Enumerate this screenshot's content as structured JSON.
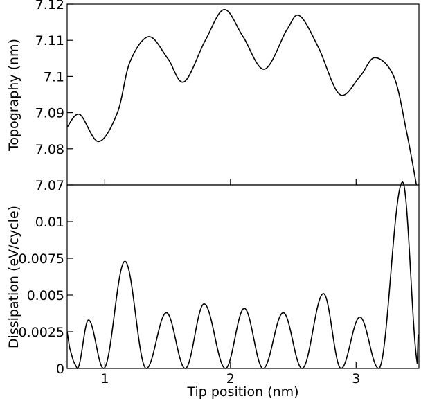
{
  "chart_data": [
    {
      "type": "line",
      "title": "",
      "xlabel": "",
      "ylabel": "Topography (nm)",
      "xlim": [
        0.7,
        3.5
      ],
      "ylim": [
        7.07,
        7.12
      ],
      "yticks": [
        7.07,
        7.08,
        7.09,
        7.1,
        7.11,
        7.12
      ],
      "ytick_labels": [
        "7.07",
        "7.08",
        "7.09",
        "7.1",
        "7.11",
        "7.12"
      ],
      "xticks": [
        1,
        2,
        3
      ],
      "grid": false,
      "legend": "none",
      "series": [
        {
          "x": [
            0.7,
            0.8,
            0.95,
            1.1,
            1.2,
            1.35,
            1.5,
            1.63,
            1.8,
            1.95,
            2.1,
            2.27,
            2.45,
            2.55,
            2.7,
            2.87,
            3.03,
            3.15,
            3.3,
            3.4,
            3.48
          ],
          "values": [
            7.086,
            7.0895,
            7.082,
            7.09,
            7.104,
            7.111,
            7.105,
            7.0985,
            7.11,
            7.1185,
            7.111,
            7.102,
            7.113,
            7.1168,
            7.108,
            7.095,
            7.1,
            7.1052,
            7.1,
            7.085,
            7.07
          ]
        }
      ]
    },
    {
      "type": "line",
      "title": "",
      "xlabel": "Tip position (nm)",
      "ylabel": "Dissipation (eV/cycle)",
      "xlim": [
        0.7,
        3.5
      ],
      "ylim": [
        0,
        0.0125
      ],
      "yticks": [
        0,
        0.0025,
        0.005,
        0.0075,
        0.01
      ],
      "ytick_labels": [
        "0",
        "0.0025",
        "0.005",
        "0.0075",
        "0.01"
      ],
      "xticks": [
        1,
        2,
        3
      ],
      "xtick_labels": [
        "1",
        "2",
        "3"
      ],
      "grid": false,
      "legend": "none",
      "peaks": {
        "x": [
          0.87,
          1.16,
          1.49,
          1.79,
          2.11,
          2.42,
          2.74,
          3.03,
          3.37
        ],
        "values": [
          0.0033,
          0.0073,
          0.0038,
          0.0044,
          0.0041,
          0.0038,
          0.0051,
          0.0035,
          0.0127
        ]
      },
      "minima_x": [
        0.7,
        0.78,
        0.99,
        1.33,
        1.64,
        1.96,
        2.26,
        2.57,
        2.88,
        3.18,
        3.5
      ]
    }
  ]
}
